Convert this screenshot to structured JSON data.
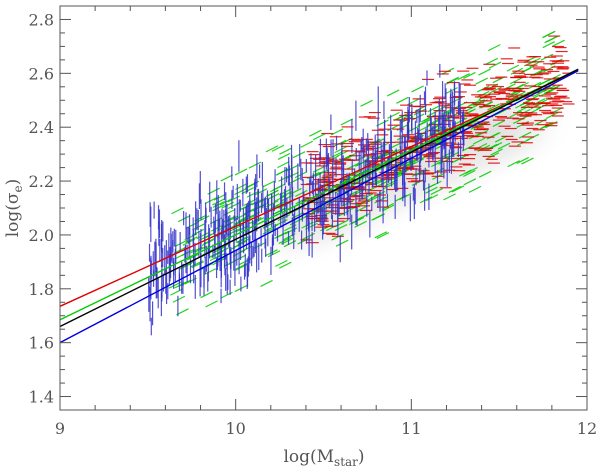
{
  "chart_data": {
    "type": "scatter",
    "title": "",
    "xlabel": "log(M",
    "xlabel_sub": "star",
    "xlabel_close": ")",
    "ylabel": "log(σ",
    "ylabel_sub": "e",
    "ylabel_close": ")",
    "xlim": [
      9,
      12
    ],
    "ylim": [
      1.35,
      2.85
    ],
    "xticks": [
      "9",
      "10",
      "11",
      "12"
    ],
    "yticks": [
      "1.4",
      "1.6",
      "1.8",
      "2.0",
      "2.2",
      "2.4",
      "2.6",
      "2.8"
    ],
    "grid": false,
    "legend": "none",
    "fit_lines": [
      {
        "color": "#e00000",
        "x": [
          9,
          11.95
        ],
        "y": [
          1.735,
          2.61
        ]
      },
      {
        "color": "#00cc00",
        "x": [
          9,
          11.95
        ],
        "y": [
          1.685,
          2.615
        ]
      },
      {
        "color": "#000000",
        "x": [
          9,
          11.95
        ],
        "y": [
          1.66,
          2.615
        ]
      },
      {
        "color": "#0000dd",
        "x": [
          9,
          11.95
        ],
        "y": [
          1.6,
          2.61
        ]
      }
    ],
    "density_trend": {
      "x": [
        9.6,
        11.9
      ],
      "y": [
        1.9,
        2.58
      ]
    },
    "series": [
      {
        "color": "#00cc00",
        "marker": "hatch-diagonal",
        "x_range": [
          9.65,
          11.85
        ],
        "spread": 0.16
      },
      {
        "color": "#e00000",
        "marker": "hatch-horizontal",
        "x_range": [
          10.4,
          11.9
        ],
        "spread": 0.14
      },
      {
        "color": "#3333cc",
        "marker": "hatch-vertical",
        "x_range": [
          9.5,
          11.3
        ],
        "spread": 0.15
      }
    ]
  }
}
